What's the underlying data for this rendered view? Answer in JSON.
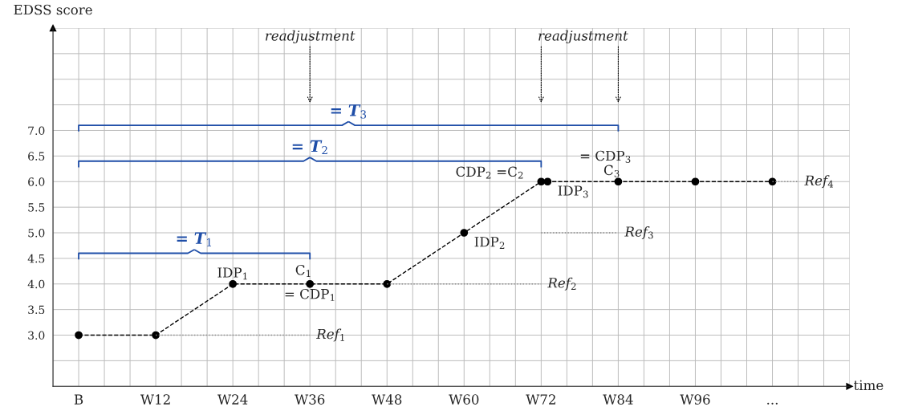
{
  "chart_data": {
    "type": "line",
    "xlabel": "time",
    "ylabel": "EDSS score",
    "categories": [
      "B",
      null,
      null,
      null,
      null,
      null,
      null,
      null,
      null,
      null,
      null,
      null,
      "W12",
      null,
      null,
      null,
      null,
      null,
      null,
      null,
      null,
      null,
      null,
      null,
      "W24",
      null,
      null,
      null,
      null,
      null,
      null,
      null,
      null,
      null,
      null,
      null,
      "W36",
      null,
      null,
      null,
      null,
      null,
      null,
      null,
      null,
      null,
      null,
      null,
      "W48",
      null,
      null,
      null,
      null,
      null,
      null,
      null,
      null,
      null,
      null,
      null,
      "W60",
      null,
      null,
      null,
      null,
      null,
      null,
      null,
      null,
      null,
      null,
      null,
      "W72",
      null,
      null,
      null,
      null,
      null,
      null,
      null,
      null,
      null,
      null,
      null,
      "W84",
      null,
      null,
      null,
      null,
      null,
      null,
      null,
      null,
      null,
      null,
      null,
      "W96",
      null,
      null,
      null,
      null,
      null,
      null,
      null,
      null,
      null,
      null,
      null,
      "...",
      null,
      null,
      null,
      null
    ],
    "ylim": [
      2,
      9
    ],
    "yticks": [
      {
        "value": 3,
        "label": "3.0"
      },
      {
        "value": 3.5,
        "label": "3.5"
      },
      {
        "value": 4,
        "label": "4.0"
      },
      {
        "value": 4.5,
        "label": "4.5"
      },
      {
        "value": 5,
        "label": "5.0"
      },
      {
        "value": 5.5,
        "label": "5.5"
      },
      {
        "value": 6,
        "label": "6.0"
      },
      {
        "value": 6.5,
        "label": "6.5"
      },
      {
        "value": 7,
        "label": "7.0"
      }
    ],
    "grid": true,
    "marker": "circle",
    "line_style": "dashed",
    "series": [
      {
        "color": "#000000",
        "values": [
          3,
          null,
          null,
          null,
          null,
          null,
          null,
          null,
          null,
          null,
          null,
          null,
          3,
          null,
          null,
          null,
          null,
          null,
          null,
          null,
          null,
          null,
          null,
          null,
          4,
          null,
          null,
          null,
          null,
          null,
          null,
          null,
          null,
          null,
          null,
          null,
          4,
          null,
          null,
          null,
          null,
          null,
          null,
          null,
          null,
          null,
          null,
          null,
          4,
          null,
          null,
          null,
          null,
          null,
          null,
          null,
          null,
          null,
          null,
          null,
          5,
          null,
          null,
          null,
          null,
          null,
          null,
          null,
          null,
          null,
          null,
          null,
          6,
          6,
          null,
          null,
          null,
          null,
          null,
          null,
          null,
          null,
          null,
          null,
          6,
          null,
          null,
          null,
          null,
          null,
          null,
          null,
          null,
          null,
          null,
          null,
          6,
          null,
          null,
          null,
          null,
          null,
          null,
          null,
          null,
          null,
          null,
          null,
          6,
          null,
          null,
          null,
          null
        ]
      },
      {
        "name": "Ref$_{1}$",
        "color": "#888888",
        "marker": "none",
        "line_style": "dotted",
        "values": [
          null,
          null,
          null,
          null,
          null,
          null,
          null,
          null,
          null,
          null,
          null,
          null,
          3,
          null,
          null,
          null,
          null,
          null,
          null,
          null,
          null,
          null,
          null,
          null,
          null,
          null,
          null,
          null,
          null,
          null,
          null,
          null,
          null,
          null,
          null,
          null,
          3,
          null,
          null,
          null,
          null,
          null,
          null,
          null,
          null,
          null,
          null,
          null,
          null,
          null,
          null,
          null,
          null,
          null,
          null,
          null,
          null,
          null,
          null,
          null,
          null,
          null,
          null,
          null,
          null,
          null,
          null,
          null,
          null,
          null,
          null,
          null,
          null,
          null,
          null,
          null,
          null,
          null,
          null,
          null,
          null,
          null,
          null,
          null,
          null,
          null,
          null,
          null,
          null,
          null,
          null,
          null,
          null,
          null,
          null,
          null,
          null,
          null,
          null,
          null,
          null,
          null,
          null,
          null,
          null,
          null,
          null,
          null,
          null,
          null,
          null,
          null,
          null
        ]
      },
      {
        "name": "Ref$_{2}$",
        "color": "#888888",
        "marker": "none",
        "line_style": "dotted",
        "values": [
          null,
          null,
          null,
          null,
          null,
          null,
          null,
          null,
          null,
          null,
          null,
          null,
          null,
          null,
          null,
          null,
          null,
          null,
          null,
          null,
          null,
          null,
          null,
          null,
          null,
          null,
          null,
          null,
          null,
          null,
          null,
          null,
          null,
          null,
          null,
          null,
          null,
          null,
          null,
          null,
          null,
          null,
          null,
          null,
          null,
          null,
          null,
          null,
          4,
          null,
          null,
          null,
          null,
          null,
          null,
          null,
          null,
          null,
          null,
          null,
          null,
          null,
          null,
          null,
          null,
          null,
          null,
          null,
          null,
          null,
          null,
          null,
          4,
          null,
          null,
          null,
          null,
          null,
          null,
          null,
          null,
          null,
          null,
          null,
          null,
          null,
          null,
          null,
          null,
          null,
          null,
          null,
          null,
          null,
          null,
          null,
          null,
          null,
          null,
          null,
          null,
          null,
          null,
          null,
          null,
          null,
          null,
          null,
          null,
          null,
          null,
          null,
          null
        ]
      },
      {
        "name": "Ref$_{3}$",
        "color": "#888888",
        "marker": "none",
        "line_style": "dotted",
        "values": [
          null,
          null,
          null,
          null,
          null,
          null,
          null,
          null,
          null,
          null,
          null,
          null,
          null,
          null,
          null,
          null,
          null,
          null,
          null,
          null,
          null,
          null,
          null,
          null,
          null,
          null,
          null,
          null,
          null,
          null,
          null,
          null,
          null,
          null,
          null,
          null,
          null,
          null,
          null,
          null,
          null,
          null,
          null,
          null,
          null,
          null,
          null,
          null,
          null,
          null,
          null,
          null,
          null,
          null,
          null,
          null,
          null,
          null,
          null,
          null,
          null,
          null,
          null,
          null,
          null,
          null,
          null,
          null,
          null,
          null,
          null,
          null,
          5,
          null,
          null,
          null,
          null,
          null,
          null,
          null,
          null,
          null,
          null,
          null,
          5,
          null,
          null,
          null,
          null,
          null,
          null,
          null,
          null,
          null,
          null,
          null,
          null,
          null,
          null,
          null,
          null,
          null,
          null,
          null,
          null,
          null,
          null,
          null,
          null,
          null,
          null,
          null,
          null
        ]
      },
      {
        "name": "Ref$_{4}$",
        "color": "#888888",
        "marker": "none",
        "line_style": "dotted",
        "values": [
          null,
          null,
          null,
          null,
          null,
          null,
          null,
          null,
          null,
          null,
          null,
          null,
          null,
          null,
          null,
          null,
          null,
          null,
          null,
          null,
          null,
          null,
          null,
          null,
          null,
          null,
          null,
          null,
          null,
          null,
          null,
          null,
          null,
          null,
          null,
          null,
          null,
          null,
          null,
          null,
          null,
          null,
          null,
          null,
          null,
          null,
          null,
          null,
          null,
          null,
          null,
          null,
          null,
          null,
          null,
          null,
          null,
          null,
          null,
          null,
          null,
          null,
          null,
          null,
          null,
          null,
          null,
          null,
          null,
          null,
          null,
          null,
          null,
          null,
          null,
          null,
          null,
          null,
          null,
          null,
          null,
          null,
          null,
          null,
          null,
          null,
          null,
          null,
          null,
          null,
          null,
          null,
          null,
          null,
          null,
          null,
          null,
          null,
          null,
          null,
          null,
          null,
          null,
          null,
          null,
          null,
          null,
          null,
          6,
          null,
          null,
          null,
          6
        ]
      }
    ],
    "annotations": [
      "= T$_{1}$",
      "= T$_{2}$",
      "= T$_{3}$",
      "readjustment",
      "readjustment",
      "IDP$_{1}$",
      "C$_{1}$",
      "= CDP$_{1}$",
      "IDP$_{2}$",
      "CDP$_{2}$ =C$_{2}$",
      "IDP$_{3}$",
      "C$_{3}$",
      "= CDP$_{3}$"
    ]
  }
}
